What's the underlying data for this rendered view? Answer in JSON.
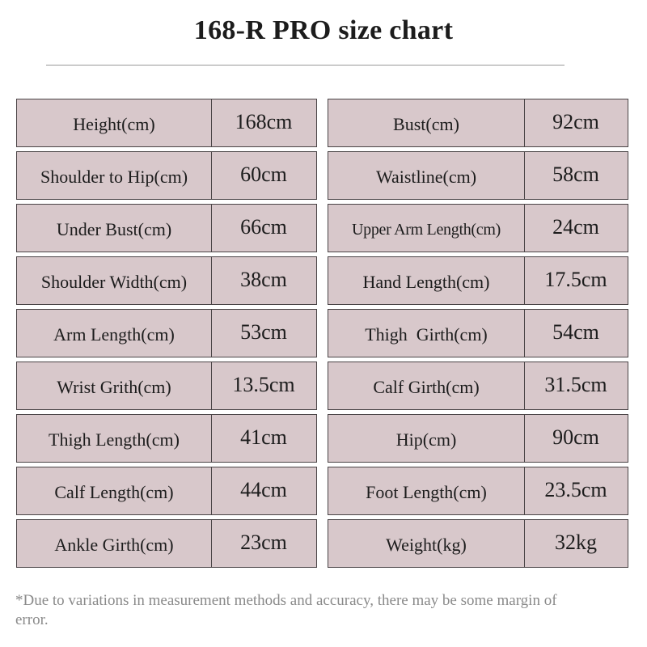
{
  "title": "168-R PRO size chart",
  "left_table": [
    {
      "label": "Height(cm)",
      "value": "168cm"
    },
    {
      "label": "Shoulder to Hip(cm)",
      "value": "60cm"
    },
    {
      "label": "Under Bust(cm)",
      "value": "66cm"
    },
    {
      "label": "Shoulder Width(cm)",
      "value": "38cm"
    },
    {
      "label": "Arm Length(cm)",
      "value": "53cm"
    },
    {
      "label": "Wrist Grith(cm)",
      "value": "13.5cm"
    },
    {
      "label": "Thigh Length(cm)",
      "value": "41cm"
    },
    {
      "label": "Calf Length(cm)",
      "value": "44cm"
    },
    {
      "label": "Ankle Girth(cm)",
      "value": "23cm"
    }
  ],
  "right_table": [
    {
      "label": "Bust(cm)",
      "value": "92cm"
    },
    {
      "label": "Waistline(cm)",
      "value": "58cm"
    },
    {
      "label": "Upper Arm Length(cm)",
      "value": "24cm"
    },
    {
      "label": "Hand Length(cm)",
      "value": "17.5cm"
    },
    {
      "label": "Thigh  Girth(cm)",
      "value": "54cm"
    },
    {
      "label": "Calf Girth(cm)",
      "value": "31.5cm"
    },
    {
      "label": "Hip(cm)",
      "value": "90cm"
    },
    {
      "label": "Foot Length(cm)",
      "value": "23.5cm"
    },
    {
      "label": "Weight(kg)",
      "value": "32kg"
    }
  ],
  "footnote": "*Due to variations in measurement methods and accuracy, there may be some margin of error.",
  "colors": {
    "cell_background": "#d8c8cb",
    "border": "#4a4446",
    "footnote_text": "#8a8a8a"
  }
}
